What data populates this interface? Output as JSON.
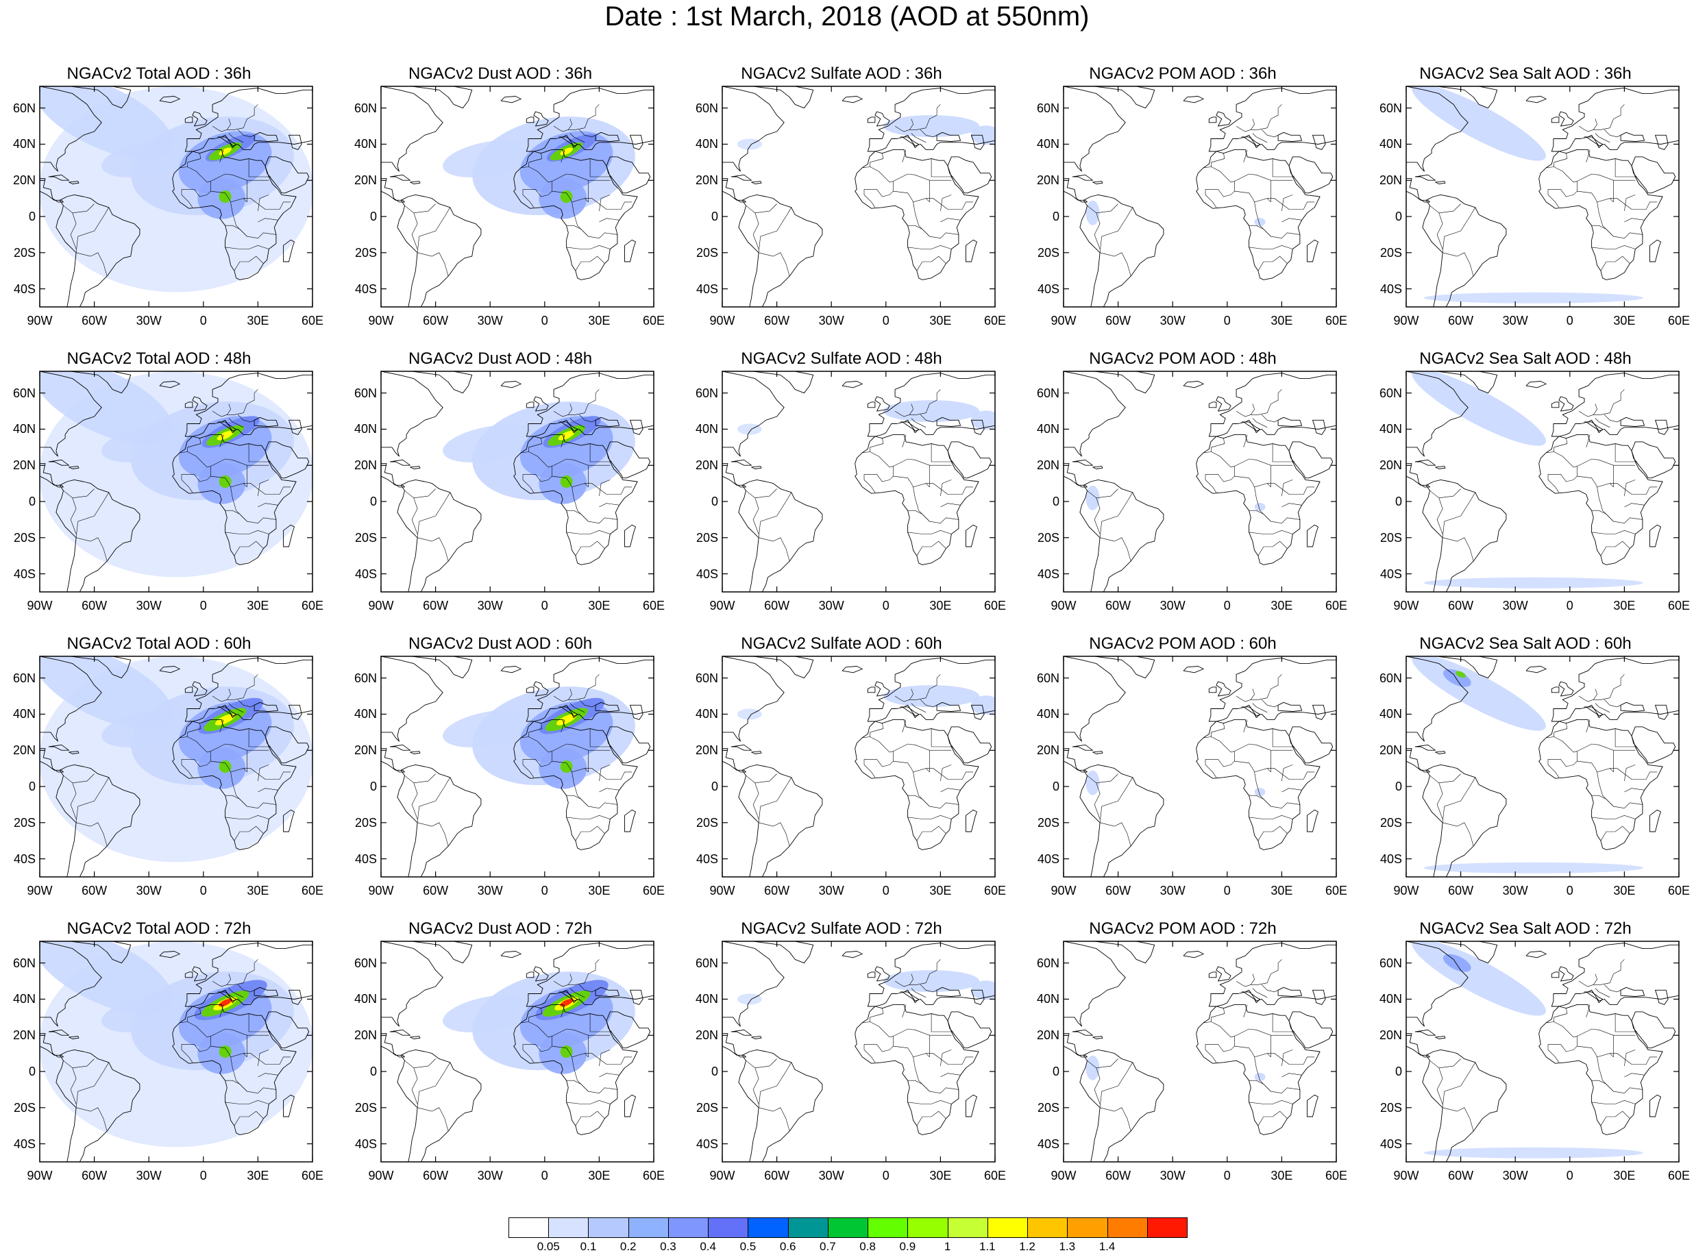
{
  "title": "Date : 1st March, 2018 (AOD at 550nm)",
  "rows": [
    [
      "NGACv2 Total AOD : 36h",
      "NGACv2 Dust AOD : 36h",
      "NGACv2 Sulfate AOD : 36h",
      "NGACv2 POM AOD : 36h",
      "NGACv2 Sea Salt AOD : 36h"
    ],
    [
      "NGACv2 Total AOD : 48h",
      "NGACv2 Dust AOD : 48h",
      "NGACv2 Sulfate AOD : 48h",
      "NGACv2 POM AOD : 48h",
      "NGACv2 Sea Salt AOD : 48h"
    ],
    [
      "NGACv2 Total AOD : 60h",
      "NGACv2 Dust AOD : 60h",
      "NGACv2 Sulfate AOD : 60h",
      "NGACv2 POM AOD : 60h",
      "NGACv2 Sea Salt AOD : 60h"
    ],
    [
      "NGACv2 Total AOD : 72h",
      "NGACv2 Dust AOD : 72h",
      "NGACv2 Sulfate AOD : 72h",
      "NGACv2 POM AOD : 72h",
      "NGACv2 Sea Salt  AOD : 72h"
    ]
  ],
  "lat_labels": [
    "60N",
    "40N",
    "20N",
    "0",
    "20S",
    "40S"
  ],
  "lon_labels": [
    "90W",
    "60W",
    "30W",
    "0",
    "30E",
    "60E"
  ],
  "colorbar": {
    "labels": [
      "0.05",
      "0.1",
      "0.2",
      "0.3",
      "0.4",
      "0.5",
      "0.6",
      "0.7",
      "0.8",
      "0.9",
      "1",
      "1.1",
      "1.2",
      "1.3",
      "1.4"
    ],
    "colors": [
      "#ffffff",
      "#d6e2ff",
      "#b5c9ff",
      "#8eb2ff",
      "#7f96ff",
      "#6370f8",
      "#0063ff",
      "#009696",
      "#00c633",
      "#63ff00",
      "#96ff00",
      "#c6ff33",
      "#ffff00",
      "#ffc600",
      "#ffa000",
      "#ff7c00",
      "#ff1900"
    ]
  },
  "colors": {
    "land_outline": "#000000",
    "low_aod": "#c9d8ff",
    "mid_aod": "#8fa8ff",
    "high_aod": "#6f86f5",
    "green": "#63d400",
    "yellow": "#ffff00",
    "red": "#ff1900"
  }
}
